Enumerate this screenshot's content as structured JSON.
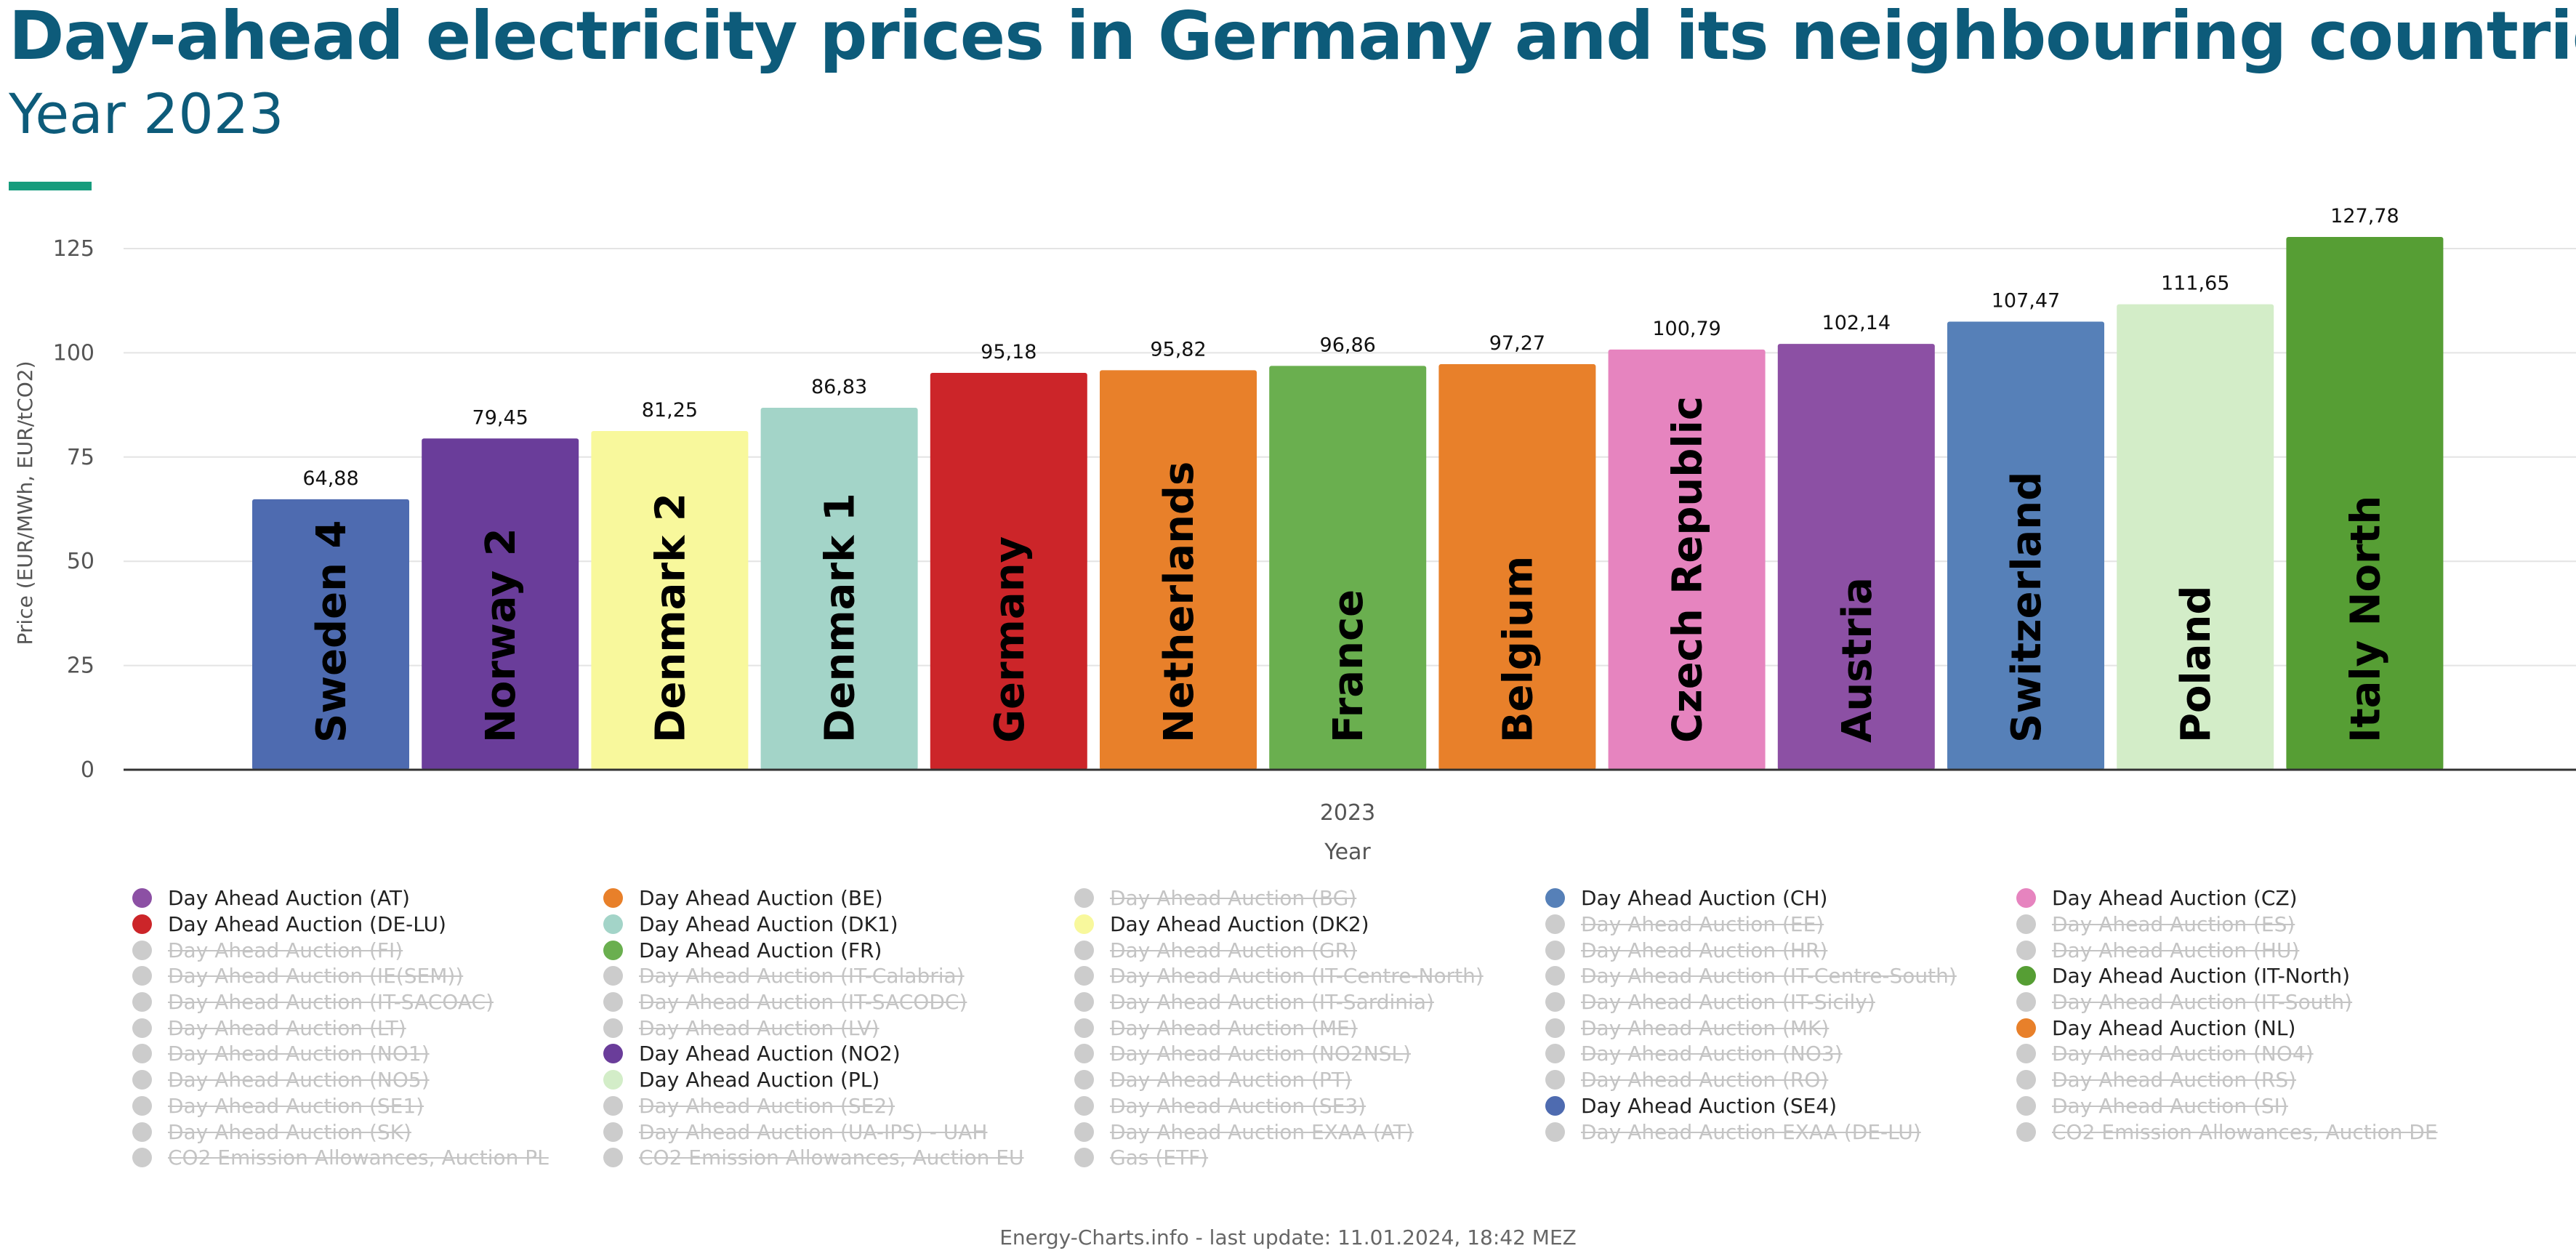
{
  "chart_data": {
    "type": "bar",
    "title": "Day-ahead electricity prices in Germany and its neighbouring countries",
    "subtitle": "Year 2023",
    "xlabel": "Year",
    "ylabel": "Price (EUR/MWh, EUR/tCO2)",
    "x_category": "2023",
    "ylim": [
      0,
      130
    ],
    "yticks": [
      0,
      25,
      50,
      75,
      100,
      125
    ],
    "grid": true,
    "bars": [
      {
        "label": "Sweden 4",
        "value": 64.88,
        "value_label": "64,88",
        "color": "#4e6bb0"
      },
      {
        "label": "Norway 2",
        "value": 79.45,
        "value_label": "79,45",
        "color": "#6a3d9a"
      },
      {
        "label": "Denmark 2",
        "value": 81.25,
        "value_label": "81,25",
        "color": "#f8f89c"
      },
      {
        "label": "Denmark 1",
        "value": 86.83,
        "value_label": "86,83",
        "color": "#a3d4c8"
      },
      {
        "label": "Germany",
        "value": 95.18,
        "value_label": "95,18",
        "color": "#cc2529"
      },
      {
        "label": "Netherlands",
        "value": 95.82,
        "value_label": "95,82",
        "color": "#e8802a"
      },
      {
        "label": "France",
        "value": 96.86,
        "value_label": "96,86",
        "color": "#6aaf4f"
      },
      {
        "label": "Belgium",
        "value": 97.27,
        "value_label": "97,27",
        "color": "#e8802a"
      },
      {
        "label": "Czech Republic",
        "value": 100.79,
        "value_label": "100,79",
        "color": "#e684bf"
      },
      {
        "label": "Austria",
        "value": 102.14,
        "value_label": "102,14",
        "color": "#8c50a4"
      },
      {
        "label": "Switzerland",
        "value": 107.47,
        "value_label": "107,47",
        "color": "#5680b8"
      },
      {
        "label": "Poland",
        "value": 111.65,
        "value_label": "111,65",
        "color": "#d3edc8"
      },
      {
        "label": "Italy North",
        "value": 127.78,
        "value_label": "127,78",
        "color": "#569e34"
      }
    ]
  },
  "legend": [
    {
      "label": "Day Ahead Auction (AT)",
      "active": true,
      "color": "#8c50a4"
    },
    {
      "label": "Day Ahead Auction (BE)",
      "active": true,
      "color": "#e8802a"
    },
    {
      "label": "Day Ahead Auction (BG)",
      "active": false
    },
    {
      "label": "Day Ahead Auction (CH)",
      "active": true,
      "color": "#5680b8"
    },
    {
      "label": "Day Ahead Auction (CZ)",
      "active": true,
      "color": "#e684bf"
    },
    {
      "label": "Day Ahead Auction (DE-LU)",
      "active": true,
      "color": "#cc2529"
    },
    {
      "label": "Day Ahead Auction (DK1)",
      "active": true,
      "color": "#a3d4c8"
    },
    {
      "label": "Day Ahead Auction (DK2)",
      "active": true,
      "color": "#f8f89c"
    },
    {
      "label": "Day Ahead Auction (EE)",
      "active": false
    },
    {
      "label": "Day Ahead Auction (ES)",
      "active": false
    },
    {
      "label": "Day Ahead Auction (FI)",
      "active": false
    },
    {
      "label": "Day Ahead Auction (FR)",
      "active": true,
      "color": "#6aaf4f"
    },
    {
      "label": "Day Ahead Auction (GR)",
      "active": false
    },
    {
      "label": "Day Ahead Auction (HR)",
      "active": false
    },
    {
      "label": "Day Ahead Auction (HU)",
      "active": false
    },
    {
      "label": "Day Ahead Auction (IE(SEM))",
      "active": false
    },
    {
      "label": "Day Ahead Auction (IT-Calabria)",
      "active": false
    },
    {
      "label": "Day Ahead Auction (IT-Centre-North)",
      "active": false
    },
    {
      "label": "Day Ahead Auction (IT-Centre-South)",
      "active": false
    },
    {
      "label": "Day Ahead Auction (IT-North)",
      "active": true,
      "color": "#569e34"
    },
    {
      "label": "Day Ahead Auction (IT-SACOAC)",
      "active": false
    },
    {
      "label": "Day Ahead Auction (IT-SACODC)",
      "active": false
    },
    {
      "label": "Day Ahead Auction (IT-Sardinia)",
      "active": false
    },
    {
      "label": "Day Ahead Auction (IT-Sicily)",
      "active": false
    },
    {
      "label": "Day Ahead Auction (IT-South)",
      "active": false
    },
    {
      "label": "Day Ahead Auction (LT)",
      "active": false
    },
    {
      "label": "Day Ahead Auction (LV)",
      "active": false
    },
    {
      "label": "Day Ahead Auction (ME)",
      "active": false
    },
    {
      "label": "Day Ahead Auction (MK)",
      "active": false
    },
    {
      "label": "Day Ahead Auction (NL)",
      "active": true,
      "color": "#e8802a"
    },
    {
      "label": "Day Ahead Auction (NO1)",
      "active": false
    },
    {
      "label": "Day Ahead Auction (NO2)",
      "active": true,
      "color": "#6a3d9a"
    },
    {
      "label": "Day Ahead Auction (NO2NSL)",
      "active": false
    },
    {
      "label": "Day Ahead Auction (NO3)",
      "active": false
    },
    {
      "label": "Day Ahead Auction (NO4)",
      "active": false
    },
    {
      "label": "Day Ahead Auction (NO5)",
      "active": false
    },
    {
      "label": "Day Ahead Auction (PL)",
      "active": true,
      "color": "#d3edc8"
    },
    {
      "label": "Day Ahead Auction (PT)",
      "active": false
    },
    {
      "label": "Day Ahead Auction (RO)",
      "active": false
    },
    {
      "label": "Day Ahead Auction (RS)",
      "active": false
    },
    {
      "label": "Day Ahead Auction (SE1)",
      "active": false
    },
    {
      "label": "Day Ahead Auction (SE2)",
      "active": false
    },
    {
      "label": "Day Ahead Auction (SE3)",
      "active": false
    },
    {
      "label": "Day Ahead Auction (SE4)",
      "active": true,
      "color": "#4e6bb0"
    },
    {
      "label": "Day Ahead Auction (SI)",
      "active": false
    },
    {
      "label": "Day Ahead Auction (SK)",
      "active": false
    },
    {
      "label": "Day Ahead Auction (UA-IPS) - UAH",
      "active": false
    },
    {
      "label": "Day Ahead Auction EXAA (AT)",
      "active": false
    },
    {
      "label": "Day Ahead Auction EXAA (DE-LU)",
      "active": false
    },
    {
      "label": "CO2 Emission Allowances, Auction DE",
      "active": false
    },
    {
      "label": "CO2 Emission Allowances, Auction PL",
      "active": false
    },
    {
      "label": "CO2 Emission Allowances, Auction EU",
      "active": false
    },
    {
      "label": "Gas (ETF)",
      "active": false
    }
  ],
  "footer": "Energy-Charts.info - last update: 11.01.2024, 18:42 MEZ",
  "colors": {
    "title": "#0d5b7a",
    "accent": "#179c7d",
    "inactive_legend": "#cccccc"
  }
}
